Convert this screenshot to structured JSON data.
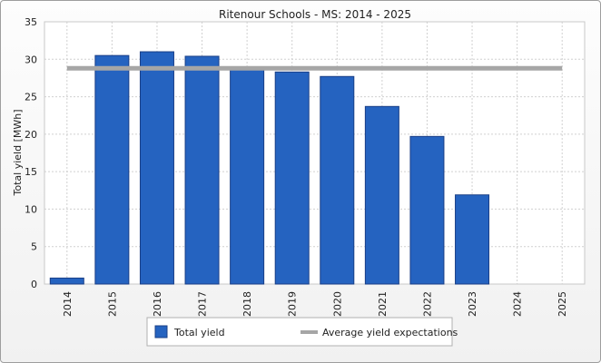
{
  "chart_data": {
    "type": "bar",
    "title": "Ritenour Schools - MS: 2014 - 2025",
    "xlabel": "",
    "ylabel": "Total yield [MWh]",
    "categories": [
      "2014",
      "2015",
      "2016",
      "2017",
      "2018",
      "2019",
      "2020",
      "2021",
      "2022",
      "2023",
      "2024",
      "2025"
    ],
    "series": [
      {
        "name": "Total yield",
        "type": "bar",
        "color": "#2563c0",
        "values": [
          0.8,
          30.5,
          31.0,
          30.4,
          29.0,
          28.3,
          27.7,
          23.7,
          19.7,
          11.9,
          null,
          null
        ]
      },
      {
        "name": "Average yield expectations",
        "type": "line",
        "color": "#a6a6a6",
        "values": [
          28.8,
          28.8,
          28.8,
          28.8,
          28.8,
          28.8,
          28.8,
          28.8,
          28.8,
          28.8,
          28.8,
          28.8
        ]
      }
    ],
    "ylim": [
      0,
      35
    ],
    "yticks": [
      0,
      5,
      10,
      15,
      20,
      25,
      30,
      35
    ],
    "grid": true,
    "legend": "bottom"
  }
}
